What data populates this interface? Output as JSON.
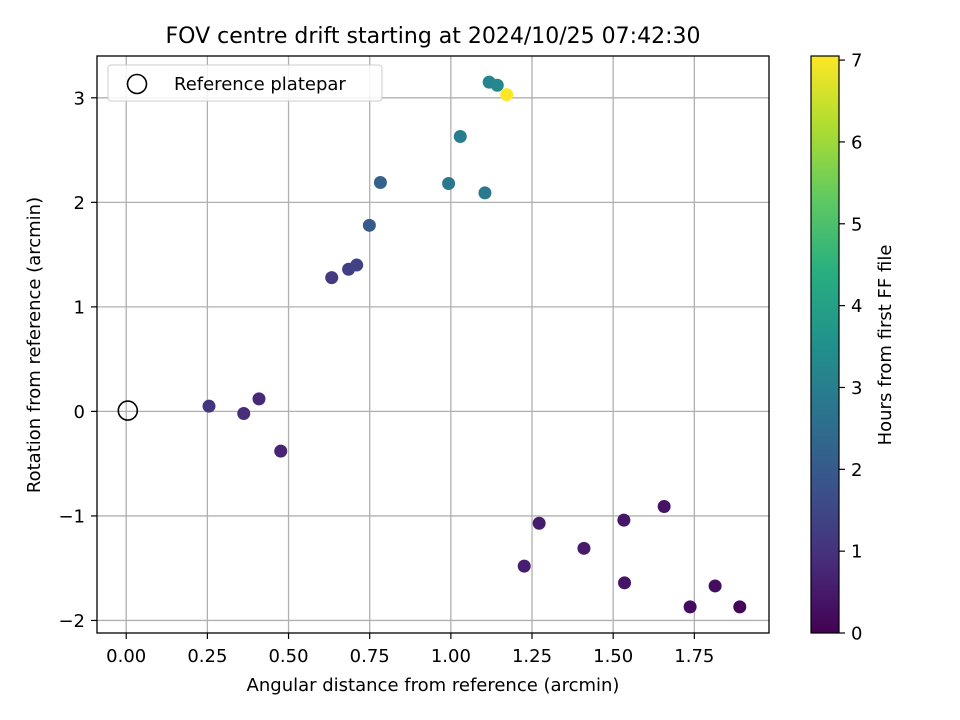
{
  "chart_data": {
    "type": "scatter",
    "title": "FOV centre drift starting at 2024/10/25 07:42:30",
    "xlabel": "Angular distance from reference (arcmin)",
    "ylabel": "Rotation from reference (arcmin)",
    "xlim": [
      -0.09,
      1.98
    ],
    "ylim": [
      -2.12,
      3.4
    ],
    "xticks": [
      0.0,
      0.25,
      0.5,
      0.75,
      1.0,
      1.25,
      1.5,
      1.75
    ],
    "xtick_labels": [
      "0.00",
      "0.25",
      "0.50",
      "0.75",
      "1.00",
      "1.25",
      "1.50",
      "1.75"
    ],
    "yticks": [
      -2,
      -1,
      0,
      1,
      2,
      3
    ],
    "ytick_labels": [
      "−2",
      "−1",
      "0",
      "1",
      "2",
      "3"
    ],
    "grid": true,
    "legend": {
      "position": "upper-left",
      "entries": [
        "Reference platepar"
      ]
    },
    "colorbar": {
      "label": "Hours from first FF file",
      "range": [
        0,
        7.05
      ],
      "ticks": [
        0,
        1,
        2,
        3,
        4,
        5,
        6,
        7
      ],
      "tick_labels": [
        "0",
        "1",
        "2",
        "3",
        "4",
        "5",
        "6",
        "7"
      ],
      "colormap": "viridis"
    },
    "reference_point": {
      "x": 0.0,
      "y": 0.0,
      "marker": "open-circle",
      "color": "#000000"
    },
    "points": [
      {
        "x": 1.89,
        "y": -1.87,
        "hours": 0.1
      },
      {
        "x": 1.737,
        "y": -1.87,
        "hours": 0.2
      },
      {
        "x": 1.814,
        "y": -1.67,
        "hours": 0.25
      },
      {
        "x": 1.535,
        "y": -1.64,
        "hours": 0.4
      },
      {
        "x": 1.657,
        "y": -0.91,
        "hours": 0.35
      },
      {
        "x": 1.533,
        "y": -1.04,
        "hours": 0.45
      },
      {
        "x": 1.41,
        "y": -1.31,
        "hours": 0.5
      },
      {
        "x": 1.272,
        "y": -1.07,
        "hours": 0.55
      },
      {
        "x": 1.226,
        "y": -1.48,
        "hours": 0.6
      },
      {
        "x": 0.476,
        "y": -0.38,
        "hours": 0.7
      },
      {
        "x": 0.409,
        "y": 0.12,
        "hours": 0.8
      },
      {
        "x": 0.362,
        "y": -0.02,
        "hours": 0.9
      },
      {
        "x": 0.255,
        "y": 0.05,
        "hours": 1.1
      },
      {
        "x": 0.633,
        "y": 1.28,
        "hours": 1.2
      },
      {
        "x": 0.685,
        "y": 1.36,
        "hours": 1.3
      },
      {
        "x": 0.71,
        "y": 1.4,
        "hours": 1.4
      },
      {
        "x": 0.749,
        "y": 1.78,
        "hours": 2.0
      },
      {
        "x": 0.783,
        "y": 2.19,
        "hours": 2.2
      },
      {
        "x": 0.993,
        "y": 2.18,
        "hours": 2.8
      },
      {
        "x": 1.105,
        "y": 2.09,
        "hours": 2.9
      },
      {
        "x": 1.029,
        "y": 2.63,
        "hours": 3.0
      },
      {
        "x": 1.118,
        "y": 3.15,
        "hours": 3.2
      },
      {
        "x": 1.143,
        "y": 3.12,
        "hours": 3.3
      },
      {
        "x": 1.172,
        "y": 3.03,
        "hours": 7.05
      }
    ]
  }
}
